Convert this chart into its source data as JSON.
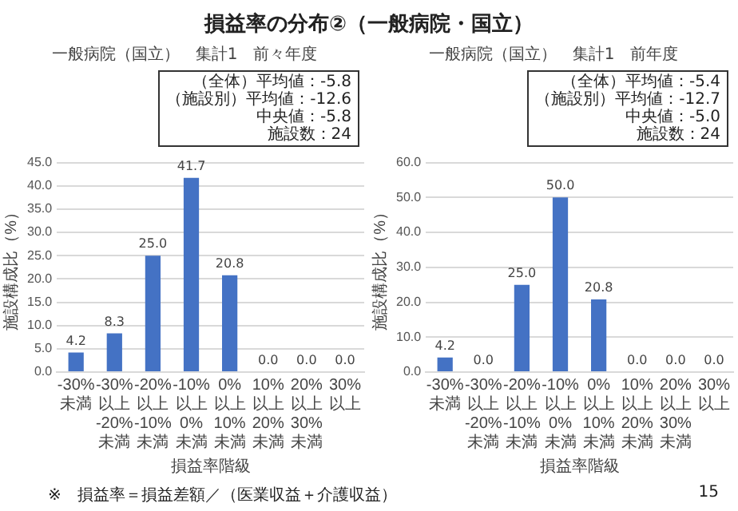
{
  "chart_data": [
    {
      "type": "other",
      "title": "損益率の分布②（一般病院・国立）"
    },
    {
      "type": "bar",
      "title": "一般病院（国立）　集計1　前々年度",
      "xlabel": "損益率階級",
      "ylabel": "施設構成比（%）",
      "categories": [
        "-30%未満",
        "-30%以上-20%未満",
        "-20%以上-10%未満",
        "-10%以上0%未満",
        "0%以上10%未満",
        "10%以上20%未満",
        "20%以上30%未満",
        "30%以上"
      ],
      "values": [
        4.2,
        8.3,
        25.0,
        41.7,
        20.8,
        0,
        0,
        0
      ],
      "value_labels": [
        "4.2",
        "8.3",
        "25.0",
        "41.7",
        "20.8",
        "0.0",
        "0.0",
        "0.0"
      ],
      "color": "#4472c4",
      "ylim": [
        0,
        45
      ],
      "yticks": [
        {
          "value": 0,
          "label": "0.0"
        },
        {
          "value": 5,
          "label": "5.0"
        },
        {
          "value": 10,
          "label": "10.0"
        },
        {
          "value": 15,
          "label": "15.0"
        },
        {
          "value": 20,
          "label": "20.0"
        },
        {
          "value": 25,
          "label": "25.0"
        },
        {
          "value": 30,
          "label": "30.0"
        },
        {
          "value": 35,
          "label": "35.0"
        },
        {
          "value": 40,
          "label": "40.0"
        },
        {
          "value": 45,
          "label": "45.0"
        }
      ],
      "grid": "y",
      "legend": false,
      "annotations": [
        "（全体）平均値：-5.8",
        "（施設別）平均値：-12.6",
        "中央値：-5.8",
        "施設数：24"
      ]
    },
    {
      "type": "bar",
      "title": "一般病院（国立）　集計1　前年度",
      "xlabel": "損益率階級",
      "ylabel": "施設構成比（%）",
      "categories": [
        "-30%未満",
        "-30%以上-20%未満",
        "-20%以上-10%未満",
        "-10%以上0%未満",
        "0%以上10%未満",
        "10%以上20%未満",
        "20%以上30%未満",
        "30%以上"
      ],
      "values": [
        4.2,
        0,
        25.0,
        50.0,
        20.8,
        0,
        0,
        0
      ],
      "value_labels": [
        "4.2",
        "0.0",
        "25.0",
        "50.0",
        "20.8",
        "0.0",
        "0.0",
        "0.0"
      ],
      "color": "#4472c4",
      "ylim": [
        0,
        60
      ],
      "yticks": [
        {
          "value": 0,
          "label": "0.0"
        },
        {
          "value": 10,
          "label": "10.0"
        },
        {
          "value": 20,
          "label": "20.0"
        },
        {
          "value": 30,
          "label": "30.0"
        },
        {
          "value": 40,
          "label": "40.0"
        },
        {
          "value": 50,
          "label": "50.0"
        },
        {
          "value": 60,
          "label": "60.0"
        }
      ],
      "grid": "y",
      "legend": false,
      "annotations": [
        "（全体）平均値：-5.4",
        "（施設別）平均値：-12.7",
        "中央値：-5.0",
        "施設数：24"
      ]
    },
    {
      "type": "other",
      "annotations": [
        "※　損益率＝損益差額／（医業収益＋介護収益）",
        "15"
      ]
    }
  ]
}
